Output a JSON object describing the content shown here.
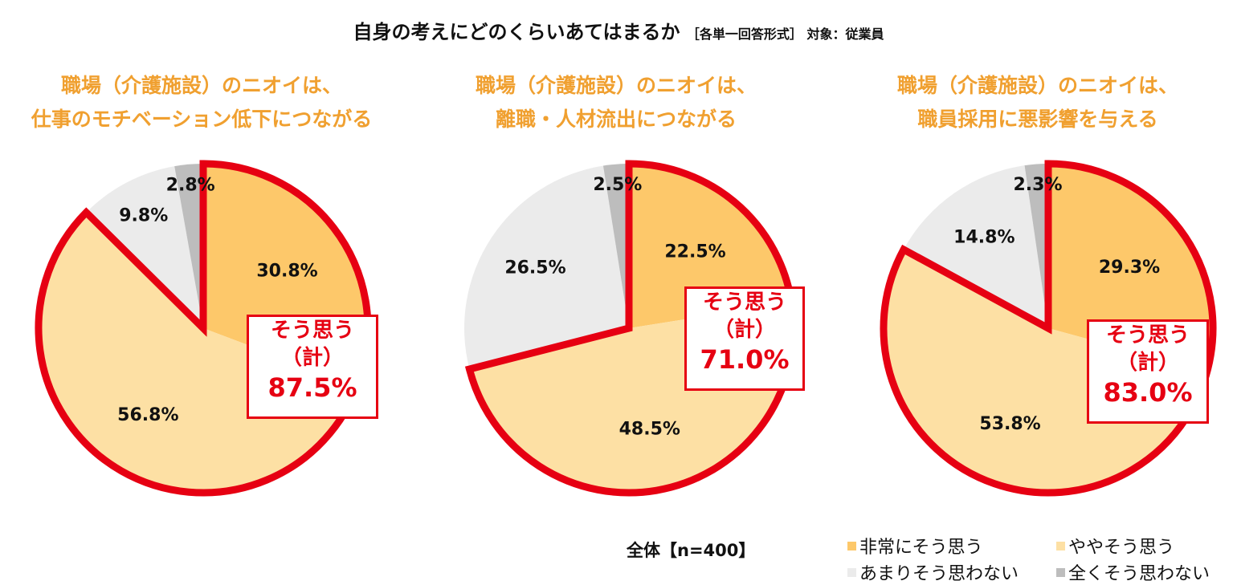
{
  "title": "自身の考えにどのくらいあてはまるか",
  "subtitle": "［各単一回答形式］ 対象：従業員",
  "sample_label": "全体【n=400】",
  "colors": {
    "very": "#fdc86a",
    "somewhat": "#fde0a4",
    "not_really": "#ebebeb",
    "not_at_all": "#bdbdbd",
    "highlight": "#e60012",
    "title": "#f0a030"
  },
  "legend": [
    {
      "label": "非常にそう思う",
      "color": "#fdc86a"
    },
    {
      "label": "ややそう思う",
      "color": "#fde0a4"
    },
    {
      "label": "あまりそう思わない",
      "color": "#ebebeb"
    },
    {
      "label": "全くそう思わない",
      "color": "#bdbdbd"
    }
  ],
  "chart_data": [
    {
      "type": "pie",
      "title_line1": "職場（介護施設）のニオイは、",
      "title_line2": "仕事のモチベーション低下につながる",
      "categories": [
        "非常にそう思う",
        "ややそう思う",
        "あまりそう思わない",
        "全くそう思わない"
      ],
      "values": [
        30.8,
        56.8,
        9.8,
        2.8
      ],
      "labels": [
        "30.8%",
        "56.8%",
        "9.8%",
        "2.8%"
      ],
      "total_line1": "そう思う",
      "total_line2": "（計）",
      "total_value": "87.5%"
    },
    {
      "type": "pie",
      "title_line1": "職場（介護施設）のニオイは、",
      "title_line2": "離職・人材流出につながる",
      "categories": [
        "非常にそう思う",
        "ややそう思う",
        "あまりそう思わない",
        "全くそう思わない"
      ],
      "values": [
        22.5,
        48.5,
        26.5,
        2.5
      ],
      "labels": [
        "22.5%",
        "48.5%",
        "26.5%",
        "2.5%"
      ],
      "total_line1": "そう思う",
      "total_line2": "（計）",
      "total_value": "71.0%"
    },
    {
      "type": "pie",
      "title_line1": "職場（介護施設）のニオイは、",
      "title_line2": "職員採用に悪影響を与える",
      "categories": [
        "非常にそう思う",
        "ややそう思う",
        "あまりそう思わない",
        "全くそう思わない"
      ],
      "values": [
        29.3,
        53.8,
        14.8,
        2.3
      ],
      "labels": [
        "29.3%",
        "53.8%",
        "14.8%",
        "2.3%"
      ],
      "total_line1": "そう思う",
      "total_line2": "（計）",
      "total_value": "83.0%"
    }
  ]
}
